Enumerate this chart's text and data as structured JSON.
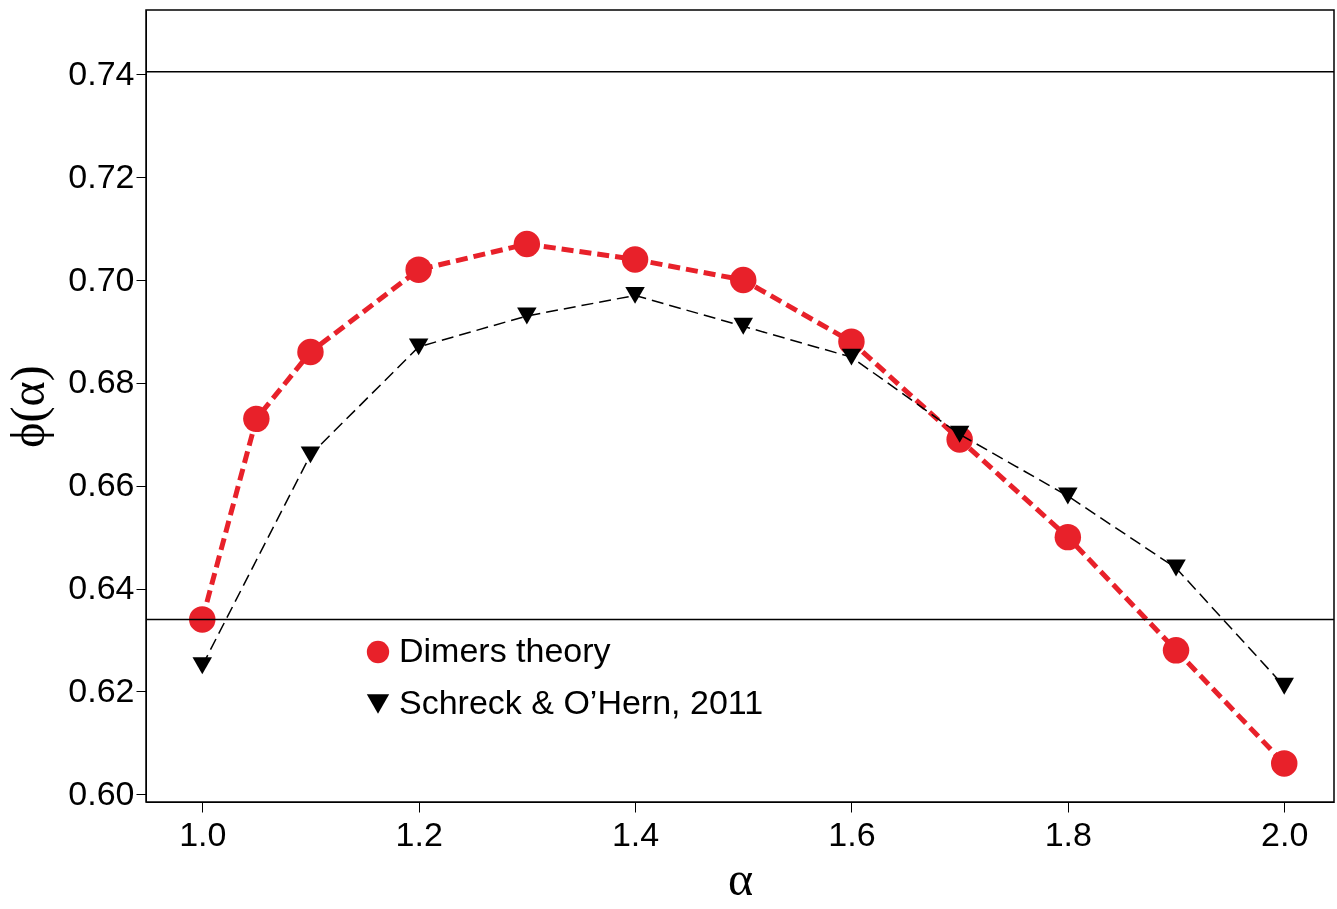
{
  "chart_data": {
    "type": "line",
    "xlabel": "α",
    "ylabel": "ϕ(α)",
    "x": [
      1.0,
      1.05,
      1.1,
      1.2,
      1.3,
      1.4,
      1.5,
      1.6,
      1.7,
      1.8,
      1.9,
      2.0
    ],
    "series": [
      {
        "name": "Dimers theory",
        "color": "#e8212a",
        "marker": "circle",
        "line_style": "dashed",
        "values": [
          0.634,
          0.673,
          0.686,
          0.702,
          0.707,
          0.704,
          0.7,
          0.688,
          0.669,
          0.65,
          0.628,
          0.606
        ]
      },
      {
        "name": "Schreck & O’Hern, 2011",
        "color": "#000000",
        "marker": "triangle",
        "line_style": "dashed",
        "x": [
          1.0,
          1.1,
          1.2,
          1.3,
          1.4,
          1.5,
          1.6,
          1.7,
          1.8,
          1.9,
          2.0
        ],
        "values": [
          0.625,
          0.666,
          0.687,
          0.693,
          0.697,
          0.691,
          0.685,
          0.67,
          0.658,
          0.644,
          0.621
        ]
      }
    ],
    "xlim": [
      0.948,
      2.046
    ],
    "xticks": [
      {
        "value": 1.0,
        "label": "1.0"
      },
      1.2,
      1.4,
      1.6,
      1.8,
      {
        "value": 2.0,
        "label": "2.0"
      }
    ],
    "ylim": [
      0.5985,
      0.7525
    ],
    "yticks": [
      {
        "value": 0.6,
        "label": "0.60"
      },
      0.62,
      0.64,
      0.66,
      0.68,
      {
        "value": 0.7,
        "label": "0.70"
      },
      0.72,
      0.74
    ],
    "ref_lines": [
      {
        "axis": "y",
        "value": 0.7405,
        "color": "#000000"
      },
      {
        "axis": "y",
        "value": 0.634,
        "color": "#000000"
      }
    ],
    "legend": "bottom",
    "grid": false
  }
}
